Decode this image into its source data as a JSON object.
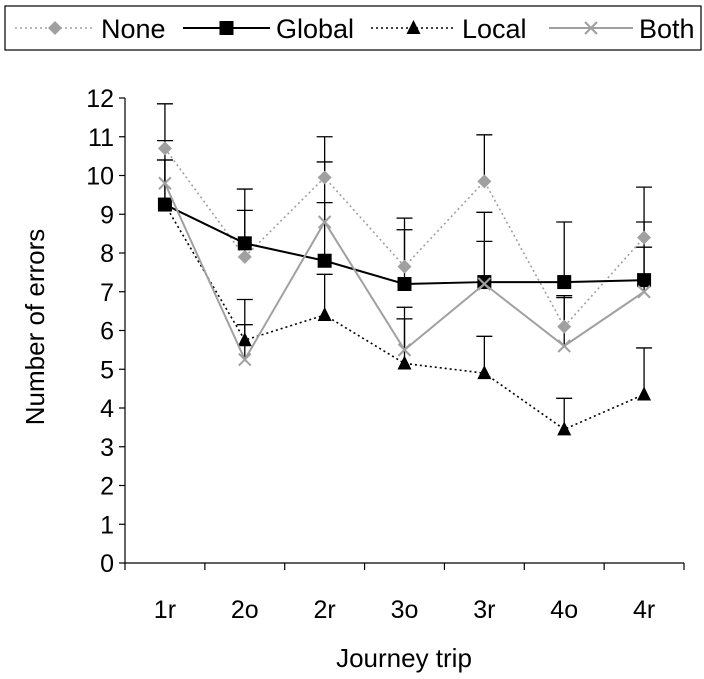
{
  "chart_data": {
    "type": "line",
    "xlabel": "Journey trip",
    "ylabel": "Number of errors",
    "categories": [
      "1r",
      "2o",
      "2r",
      "3o",
      "3r",
      "4o",
      "4r"
    ],
    "ylim": [
      0,
      12
    ],
    "yticks": [
      0,
      1,
      2,
      3,
      4,
      5,
      6,
      7,
      8,
      9,
      10,
      11,
      12
    ],
    "grid": false,
    "legend_position": "top",
    "series": [
      {
        "name": "None",
        "values": [
          10.7,
          7.9,
          9.95,
          7.65,
          9.85,
          6.1,
          8.4
        ],
        "error_upper": [
          11.85,
          9.1,
          11.0,
          8.9,
          11.05,
          6.9,
          9.7
        ],
        "color": "#a0a0a0",
        "line_style": "dotted",
        "marker": "diamond"
      },
      {
        "name": "Global",
        "values": [
          9.25,
          8.25,
          7.8,
          7.2,
          7.25,
          7.25,
          7.3
        ],
        "error_upper": [
          10.4,
          9.65,
          9.3,
          8.6,
          8.3,
          8.8,
          8.15
        ],
        "color": "#000000",
        "line_style": "solid",
        "marker": "square"
      },
      {
        "name": "Local",
        "values": [
          9.25,
          5.75,
          6.4,
          5.15,
          4.9,
          3.45,
          4.35
        ],
        "error_upper": [
          10.4,
          6.8,
          7.45,
          6.3,
          5.85,
          4.25,
          5.55
        ],
        "color": "#000000",
        "line_style": "dotted",
        "marker": "triangle"
      },
      {
        "name": "Both",
        "values": [
          9.8,
          5.25,
          8.8,
          5.5,
          7.2,
          5.6,
          7.0
        ],
        "error_upper": [
          10.9,
          6.15,
          10.35,
          6.6,
          9.05,
          6.85,
          8.8
        ],
        "color": "#a0a0a0",
        "line_style": "solid",
        "marker": "cross"
      }
    ]
  }
}
